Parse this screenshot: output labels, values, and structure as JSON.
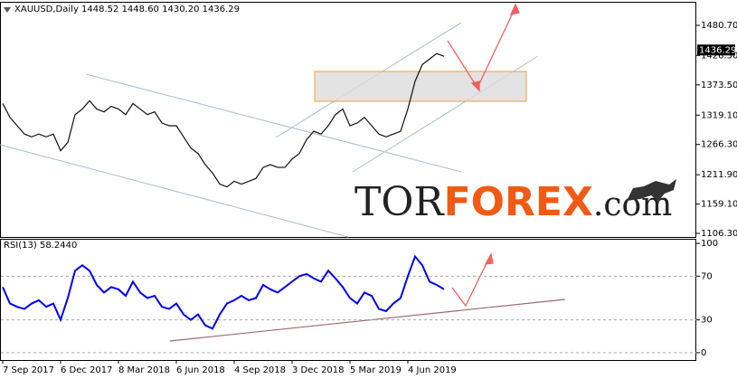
{
  "chart_data": [
    {
      "type": "line",
      "title": "XAUUSD,Daily  1448.52 1448.60 1430.20 1436.29",
      "color": "#111111",
      "values": [
        1340,
        1315,
        1300,
        1285,
        1280,
        1285,
        1280,
        1285,
        1255,
        1270,
        1320,
        1330,
        1345,
        1330,
        1325,
        1335,
        1330,
        1320,
        1340,
        1330,
        1320,
        1325,
        1305,
        1300,
        1300,
        1280,
        1260,
        1250,
        1230,
        1215,
        1195,
        1190,
        1200,
        1195,
        1200,
        1205,
        1225,
        1230,
        1225,
        1225,
        1240,
        1250,
        1275,
        1290,
        1285,
        1300,
        1320,
        1330,
        1300,
        1305,
        1315,
        1300,
        1285,
        1280,
        1285,
        1290,
        1330,
        1380,
        1410,
        1420,
        1430,
        1425
      ],
      "ylim": [
        1099.8,
        1523.0
      ],
      "yticks": [
        {
          "value": 1480.7,
          "label": "1480.70"
        },
        {
          "value": 1426.5,
          "label": "1426.50"
        },
        {
          "value": 1373.5,
          "label": "1373.50"
        },
        {
          "value": 1319.1,
          "label": "1319.10"
        },
        {
          "value": 1266.3,
          "label": "1266.30"
        },
        {
          "value": 1211.9,
          "label": "1211.90"
        },
        {
          "value": 1159.1,
          "label": "1159.10"
        },
        {
          "value": 1106.3,
          "label": "1106.30"
        }
      ],
      "last_price": {
        "value": 1436.29,
        "label": "1436.29"
      },
      "grid": false,
      "watermark": {
        "left": "TOR",
        "middle": "FOREX",
        "right": ".com"
      }
    },
    {
      "type": "line",
      "title": "RSI(13) 58.2440",
      "color": "#0000ee",
      "categories": [
        "7 Sep 2017",
        null,
        null,
        null,
        null,
        null,
        null,
        null,
        "6 Dec 2017",
        null,
        null,
        null,
        null,
        null,
        null,
        null,
        "8 Mar 2018",
        null,
        null,
        null,
        null,
        null,
        null,
        null,
        "6 Jun 2018",
        null,
        null,
        null,
        null,
        null,
        null,
        null,
        "4 Sep 2018",
        null,
        null,
        null,
        null,
        null,
        null,
        null,
        "3 Dec 2018",
        null,
        null,
        null,
        null,
        null,
        null,
        null,
        "5 Mar 2019",
        null,
        null,
        null,
        null,
        null,
        null,
        null,
        "4 Jun 2019",
        null,
        null,
        null,
        null,
        null
      ],
      "values": [
        60,
        45,
        42,
        40,
        45,
        48,
        42,
        45,
        30,
        50,
        75,
        80,
        75,
        62,
        55,
        60,
        58,
        52,
        65,
        55,
        50,
        52,
        42,
        40,
        45,
        35,
        30,
        35,
        25,
        22,
        35,
        45,
        48,
        52,
        48,
        50,
        62,
        58,
        55,
        60,
        65,
        70,
        72,
        68,
        65,
        75,
        68,
        60,
        50,
        45,
        55,
        52,
        40,
        38,
        45,
        50,
        70,
        88,
        80,
        65,
        62,
        58
      ],
      "ylim": [
        -6.7,
        104.2
      ],
      "yticks": [
        100,
        70,
        30,
        0
      ],
      "grid": true
    }
  ]
}
